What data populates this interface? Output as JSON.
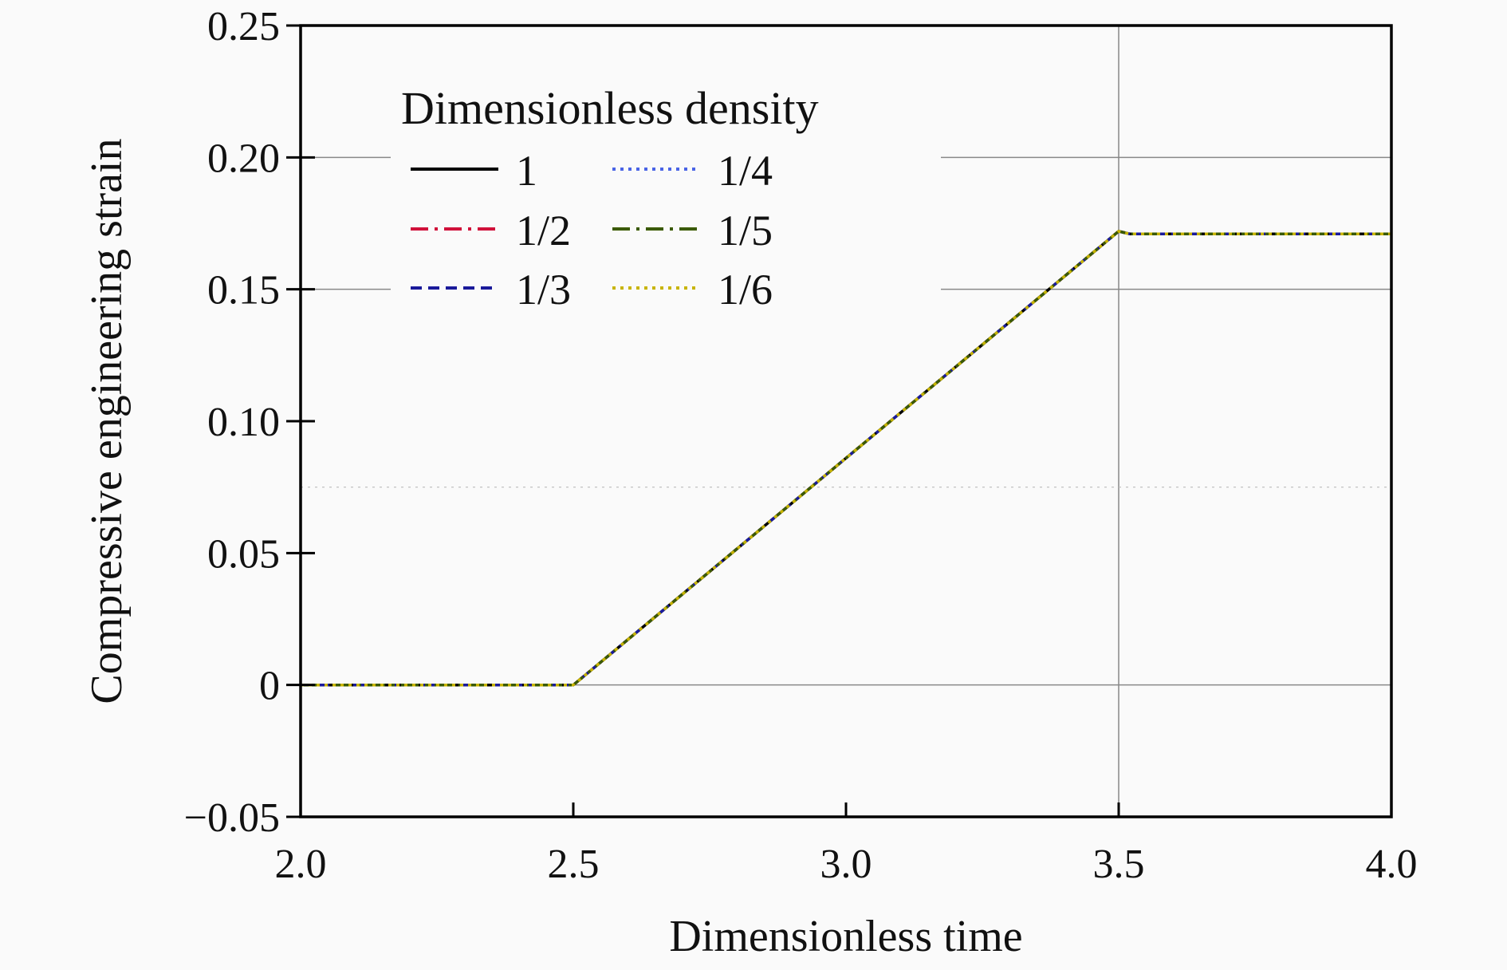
{
  "chart_data": {
    "type": "line",
    "xlabel": "Dimensionless time",
    "ylabel": "Compressive engineering strain",
    "xlim": [
      2.0,
      4.0
    ],
    "ylim": [
      -0.05,
      0.25
    ],
    "x_ticks": [
      2.0,
      2.5,
      3.0,
      3.5,
      4.0
    ],
    "x_tick_labels": [
      "2.0",
      "2.5",
      "3.0",
      "3.5",
      "4.0"
    ],
    "y_ticks": [
      -0.05,
      0,
      0.05,
      0.1,
      0.15,
      0.2,
      0.25
    ],
    "y_tick_labels": [
      "−0.05",
      "0",
      "0.05",
      "0.10",
      "0.15",
      "0.20",
      "0.25"
    ],
    "grid_x": [
      3.5
    ],
    "grid_y": [
      0,
      0.15,
      0.2
    ],
    "dotted_grid_y": [
      0.075
    ],
    "legend": {
      "title": "Dimensionless density",
      "placement": "top-left",
      "columns": 2
    },
    "series": [
      {
        "name": "1",
        "color": "#000000",
        "dash": "solid",
        "x": [
          2.0,
          2.5,
          3.5,
          3.52,
          4.0
        ],
        "y": [
          0,
          0,
          0.172,
          0.171,
          0.171
        ]
      },
      {
        "name": "1/2",
        "color": "#d0103a",
        "dash": "dashdot",
        "x": [
          2.0,
          2.5,
          3.5,
          3.52,
          4.0
        ],
        "y": [
          0,
          0,
          0.172,
          0.171,
          0.171
        ]
      },
      {
        "name": "1/3",
        "color": "#1a1a9a",
        "dash": "dashed",
        "x": [
          2.0,
          2.5,
          3.5,
          3.52,
          4.0
        ],
        "y": [
          0,
          0,
          0.172,
          0.171,
          0.171
        ]
      },
      {
        "name": "1/4",
        "color": "#4a64e6",
        "dash": "dotted",
        "x": [
          2.0,
          2.5,
          3.5,
          3.52,
          4.0
        ],
        "y": [
          0,
          0,
          0.172,
          0.171,
          0.171
        ]
      },
      {
        "name": "1/5",
        "color": "#3a5a00",
        "dash": "dashdot",
        "x": [
          2.0,
          2.5,
          3.5,
          3.52,
          4.0
        ],
        "y": [
          0,
          0,
          0.172,
          0.171,
          0.171
        ]
      },
      {
        "name": "1/6",
        "color": "#c8b400",
        "dash": "dotted",
        "x": [
          2.0,
          2.5,
          3.5,
          3.52,
          4.0
        ],
        "y": [
          0,
          0,
          0.172,
          0.171,
          0.171
        ]
      }
    ]
  }
}
